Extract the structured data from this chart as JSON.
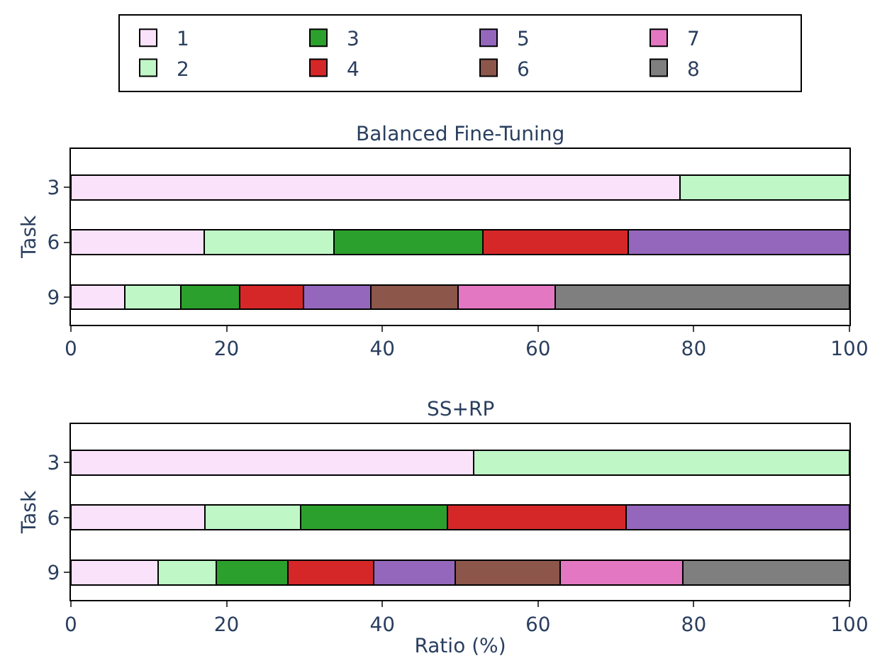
{
  "chart_data": [
    {
      "type": "bar",
      "orientation": "horizontal",
      "stacked": true,
      "title": "Balanced Fine-Tuning",
      "ylabel": "Task",
      "categories": [
        "3",
        "6",
        "9"
      ],
      "xlim": [
        0,
        100
      ],
      "xticks": [
        0,
        20,
        40,
        60,
        80,
        100
      ],
      "legend": "top",
      "series": [
        {
          "name": "1",
          "color": "#fbe2fb",
          "values": [
            78.2,
            17.1,
            6.9
          ]
        },
        {
          "name": "2",
          "color": "#c0f7c7",
          "values": [
            21.8,
            16.7,
            7.2
          ]
        },
        {
          "name": "3",
          "color": "#2ca02c",
          "values": [
            null,
            19.1,
            7.6
          ]
        },
        {
          "name": "4",
          "color": "#d62728",
          "values": [
            null,
            18.7,
            8.2
          ]
        },
        {
          "name": "5",
          "color": "#9467bd",
          "values": [
            null,
            28.4,
            8.6
          ]
        },
        {
          "name": "6",
          "color": "#8c564b",
          "values": [
            null,
            null,
            11.2
          ]
        },
        {
          "name": "7",
          "color": "#e377c2",
          "values": [
            null,
            null,
            12.5
          ]
        },
        {
          "name": "8",
          "color": "#7f7f7f",
          "values": [
            null,
            null,
            37.8
          ]
        }
      ]
    },
    {
      "type": "bar",
      "orientation": "horizontal",
      "stacked": true,
      "title": "SS+RP",
      "xlabel": "Ratio (%)",
      "ylabel": "Task",
      "categories": [
        "3",
        "6",
        "9"
      ],
      "xlim": [
        0,
        100
      ],
      "xticks": [
        0,
        20,
        40,
        60,
        80,
        100
      ],
      "legend": false,
      "series": [
        {
          "name": "1",
          "color": "#fbe2fb",
          "values": [
            51.7,
            17.2,
            11.2
          ]
        },
        {
          "name": "2",
          "color": "#c0f7c7",
          "values": [
            48.3,
            12.3,
            7.5
          ]
        },
        {
          "name": "3",
          "color": "#2ca02c",
          "values": [
            null,
            18.9,
            9.2
          ]
        },
        {
          "name": "4",
          "color": "#d62728",
          "values": [
            null,
            22.9,
            11.0
          ]
        },
        {
          "name": "5",
          "color": "#9467bd",
          "values": [
            null,
            28.7,
            10.5
          ]
        },
        {
          "name": "6",
          "color": "#8c564b",
          "values": [
            null,
            null,
            13.4
          ]
        },
        {
          "name": "7",
          "color": "#e377c2",
          "values": [
            null,
            null,
            15.8
          ]
        },
        {
          "name": "8",
          "color": "#7f7f7f",
          "values": [
            null,
            null,
            21.4
          ]
        }
      ]
    }
  ]
}
